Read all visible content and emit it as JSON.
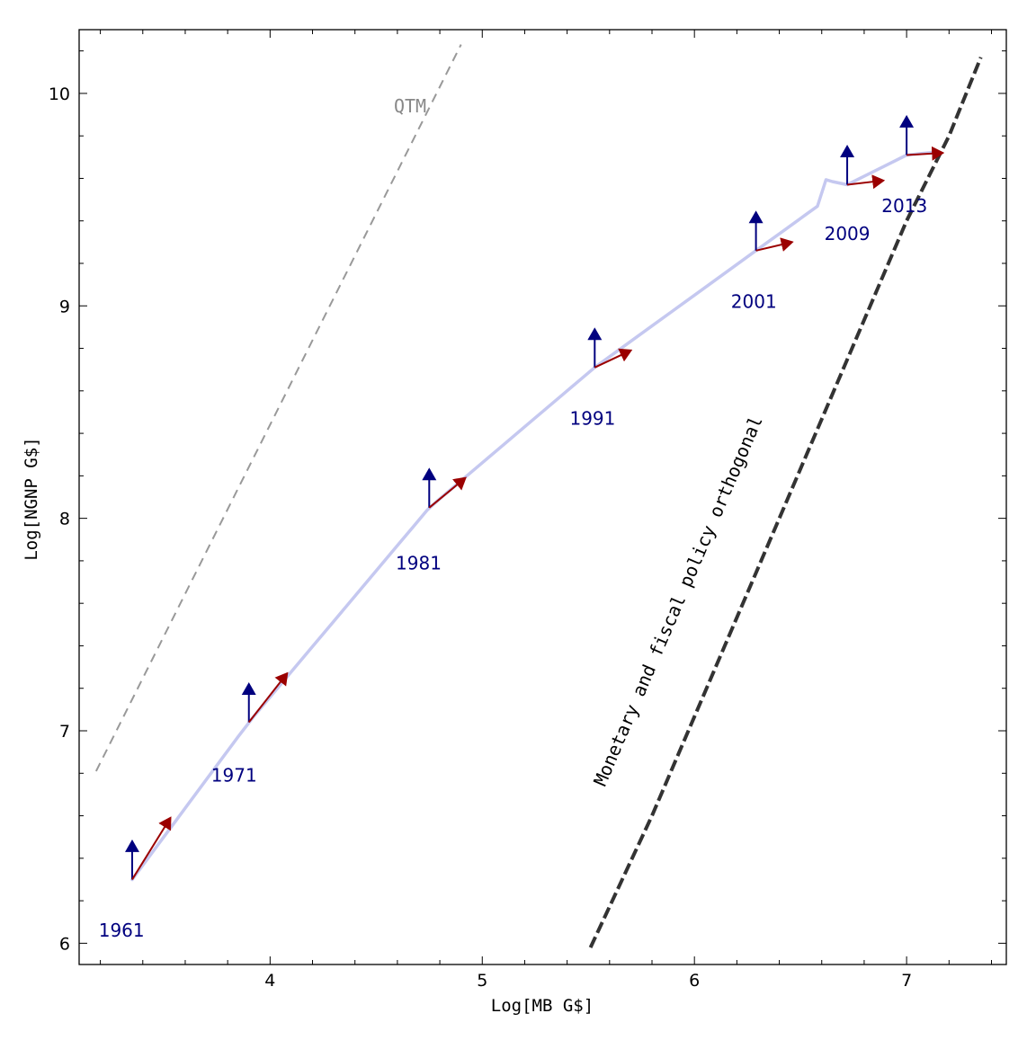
{
  "chart_data": {
    "type": "line",
    "xlabel": "Log[MB G$]",
    "ylabel": "Log[NGNP G$]",
    "xlim": [
      3.1,
      7.47
    ],
    "ylim": [
      5.9,
      10.3
    ],
    "x_ticks": [
      "4",
      "5",
      "6",
      "7"
    ],
    "y_ticks": [
      "6",
      "7",
      "8",
      "9",
      "10"
    ],
    "grid": false,
    "colors": {
      "path": "#c5c8f0",
      "fiscal_arrow": "#00007f",
      "monetary_arrow": "#9b0000",
      "year_label": "#00007f",
      "qtm_line": "#999999",
      "orthogonal_line": "#333333"
    },
    "series": [
      {
        "x": [
          3.35,
          3.4,
          3.48,
          3.55,
          3.62,
          3.7,
          3.78,
          3.85,
          3.92,
          3.98,
          4.05,
          4.12,
          4.2,
          4.3,
          4.4,
          4.5,
          4.6,
          4.68,
          4.74,
          4.8,
          4.9,
          5.0,
          5.1,
          5.2,
          5.3,
          5.38,
          5.45,
          5.53,
          5.6,
          5.7,
          5.8,
          5.9,
          6.0,
          6.1,
          6.2,
          6.27,
          6.35,
          6.45,
          6.52,
          6.58,
          6.62,
          6.65,
          6.72,
          6.8,
          6.9,
          7.0,
          7.05,
          7.12
        ]
      }
    ],
    "qtm_line": {
      "label": "QTM",
      "x": [
        3.18,
        4.9
      ],
      "y": [
        6.81,
        10.23
      ]
    },
    "orthogonal_line": {
      "label": "Monetary and fiscal policy orthogonal",
      "x": [
        5.51,
        5.8,
        6.1,
        6.4,
        6.7,
        7.0,
        7.2,
        7.35
      ],
      "y": [
        5.98,
        6.6,
        7.3,
        8.0,
        8.7,
        9.4,
        9.8,
        10.17
      ]
    },
    "markers": [
      {
        "year": "1961",
        "x": 3.35,
        "y": 6.3,
        "fiscal_dy": 0.18,
        "monetary_dx": 0.18,
        "monetary_dy": 0.29,
        "label_x": 3.3,
        "label_y": 6.06
      },
      {
        "year": "1971",
        "x": 3.9,
        "y": 7.04,
        "fiscal_dy": 0.18,
        "monetary_dx": 0.18,
        "monetary_dy": 0.23,
        "label_x": 3.83,
        "label_y": 6.79
      },
      {
        "year": "1981",
        "x": 4.75,
        "y": 8.05,
        "fiscal_dy": 0.18,
        "monetary_dx": 0.17,
        "monetary_dy": 0.14,
        "label_x": 4.7,
        "label_y": 7.79
      },
      {
        "year": "1991",
        "x": 5.53,
        "y": 8.71,
        "fiscal_dy": 0.18,
        "monetary_dx": 0.17,
        "monetary_dy": 0.08,
        "label_x": 5.52,
        "label_y": 8.47
      },
      {
        "year": "2001",
        "x": 6.29,
        "y": 9.26,
        "fiscal_dy": 0.18,
        "monetary_dx": 0.17,
        "monetary_dy": 0.04,
        "label_x": 6.28,
        "label_y": 9.02
      },
      {
        "year": "2009",
        "x": 6.72,
        "y": 9.57,
        "fiscal_dy": 0.18,
        "monetary_dx": 0.17,
        "monetary_dy": 0.02,
        "label_x": 6.72,
        "label_y": 9.34
      },
      {
        "year": "2013",
        "x": 7.0,
        "y": 9.71,
        "fiscal_dy": 0.18,
        "monetary_dx": 0.17,
        "monetary_dy": 0.01,
        "label_x": 6.99,
        "label_y": 9.47
      }
    ]
  }
}
